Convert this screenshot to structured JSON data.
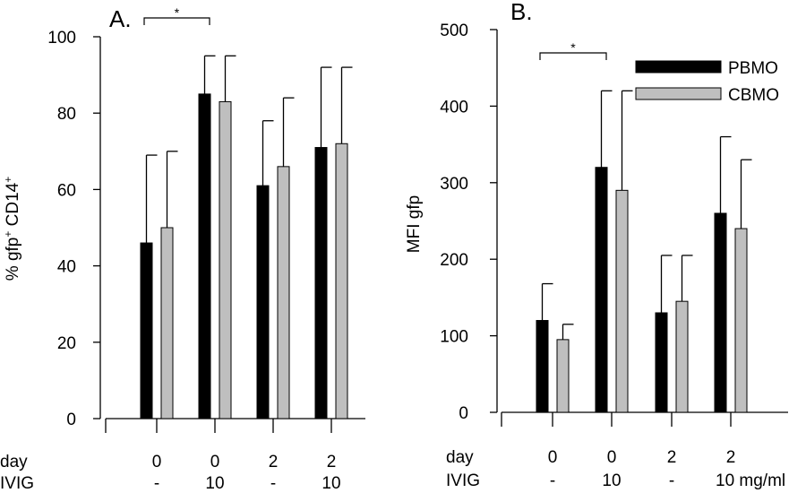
{
  "colors": {
    "series1": "#000000",
    "series2": "#bfbfbf",
    "axis": "#000000"
  },
  "chart_data": [
    {
      "type": "bar",
      "panel_label": "A.",
      "ylabel": "% gfp",
      "ylabel_sup1": "+",
      "ylabel_mid": " CD14",
      "ylabel_sup2": "+",
      "ylim": [
        0,
        100
      ],
      "yticks": [
        "0",
        "20",
        "40",
        "60",
        "80",
        "100"
      ],
      "categories": [
        "day 0 / IVIG -",
        "day 0 / IVIG 10",
        "day 2 / IVIG -",
        "day 2 / IVIG 10"
      ],
      "row_labels": [
        "day",
        "IVIG"
      ],
      "row1": [
        "0",
        "0",
        "2",
        "2"
      ],
      "row2": [
        "-",
        "10",
        "-",
        "10"
      ],
      "series": [
        {
          "values": [
            46,
            85,
            61,
            71
          ],
          "errors": [
            23,
            10,
            17,
            21
          ]
        },
        {
          "values": [
            50,
            83,
            66,
            72
          ],
          "errors": [
            20,
            12,
            18,
            20
          ]
        }
      ],
      "significance": {
        "from": 0,
        "to": 1,
        "label": "*"
      }
    },
    {
      "type": "bar",
      "panel_label": "B.",
      "ylabel": "MFI gfp",
      "ylim": [
        0,
        500
      ],
      "yticks": [
        "0",
        "100",
        "200",
        "300",
        "400",
        "500"
      ],
      "categories": [
        "day 0 / IVIG -",
        "day 0 / IVIG 10",
        "day 2 / IVIG -",
        "day 2 / IVIG 10 mg/ml"
      ],
      "row_labels": [
        "day",
        "IVIG"
      ],
      "row1": [
        "0",
        "0",
        "2",
        "2"
      ],
      "row2": [
        "-",
        "10",
        "-",
        "10 mg/ml"
      ],
      "legend": [
        "PBMO",
        "CBMO"
      ],
      "legend_position": "top-right",
      "series": [
        {
          "name": "PBMO",
          "values": [
            120,
            320,
            130,
            260
          ],
          "errors": [
            48,
            100,
            75,
            100
          ]
        },
        {
          "name": "CBMO",
          "values": [
            95,
            290,
            145,
            240
          ],
          "errors": [
            20,
            130,
            60,
            90
          ]
        }
      ],
      "significance": {
        "from": 0,
        "to": 1,
        "label": "*"
      }
    }
  ]
}
